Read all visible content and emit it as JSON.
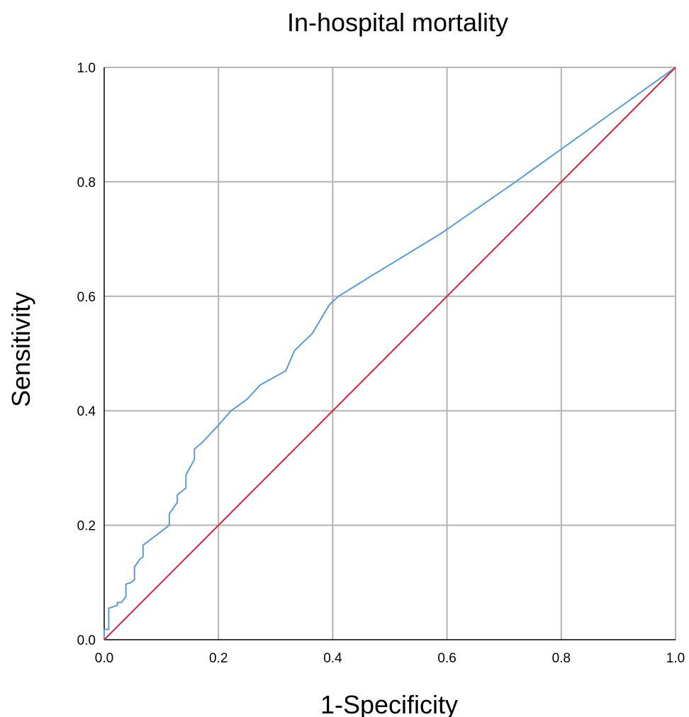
{
  "chart_data": {
    "type": "line",
    "title": "In-hospital mortality",
    "xlabel": "1-Specificity",
    "ylabel": "Sensitivity",
    "xlim": [
      0,
      1
    ],
    "ylim": [
      0,
      1
    ],
    "grid": true,
    "x_ticks": [
      "0.0",
      "0.2",
      "0.4",
      "0.6",
      "0.8",
      "1.0"
    ],
    "y_ticks": [
      "0.0",
      "0.2",
      "0.4",
      "0.6",
      "0.8",
      "1.0"
    ],
    "series": [
      {
        "color": "#5b9bd5",
        "x": [
          0,
          0,
          0.008,
          0.008,
          0.023,
          0.023,
          0.03,
          0.038,
          0.038,
          0.047,
          0.053,
          0.053,
          0.062,
          0.068,
          0.068,
          0.114,
          0.114,
          0.128,
          0.128,
          0.143,
          0.143,
          0.158,
          0.158,
          0.172,
          0.2,
          0.222,
          0.25,
          0.273,
          0.318,
          0.333,
          0.364,
          0.394,
          0.41,
          0.47,
          0.59,
          0.72,
          1.0
        ],
        "y": [
          0,
          0.018,
          0.018,
          0.055,
          0.06,
          0.065,
          0.065,
          0.075,
          0.097,
          0.1,
          0.105,
          0.127,
          0.14,
          0.145,
          0.165,
          0.2,
          0.22,
          0.24,
          0.253,
          0.265,
          0.288,
          0.315,
          0.333,
          0.345,
          0.375,
          0.4,
          0.42,
          0.445,
          0.47,
          0.505,
          0.535,
          0.585,
          0.6,
          0.637,
          0.71,
          0.8,
          1.0
        ]
      },
      {
        "color": "#d6203f",
        "x": [
          0,
          1
        ],
        "y": [
          0,
          1
        ]
      }
    ]
  }
}
